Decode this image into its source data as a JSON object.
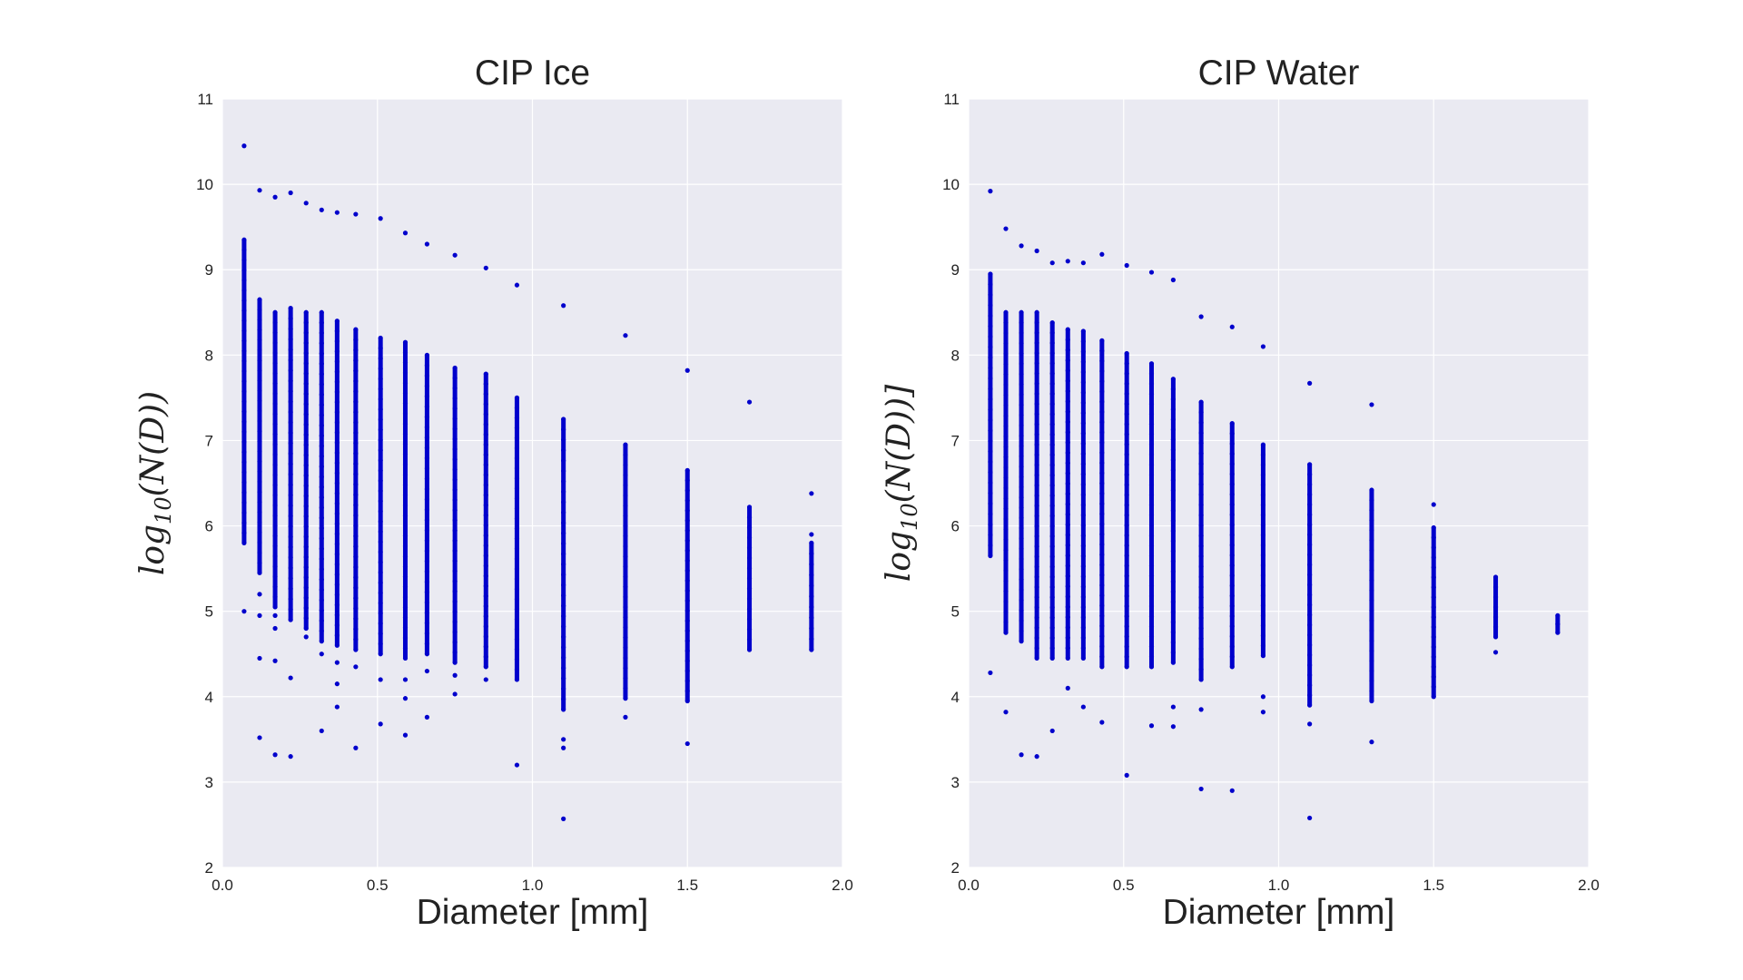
{
  "chart_data": [
    {
      "type": "scatter",
      "title": "CIP Ice",
      "xlabel": "Diameter [mm]",
      "ylabel": {
        "base": "log",
        "sub": "10",
        "rest": "(N(D))"
      },
      "xlim": [
        0.0,
        2.0
      ],
      "ylim": [
        2,
        11
      ],
      "xticks": [
        "0.0",
        "0.5",
        "1.0",
        "1.5",
        "2.0"
      ],
      "yticks": [
        "2",
        "3",
        "4",
        "5",
        "6",
        "7",
        "8",
        "9",
        "10",
        "11"
      ],
      "grid": true,
      "point_color": "#0000cc",
      "background": "#eaeaf2",
      "columns": [
        {
          "x": 0.07,
          "ymin": 5.8,
          "ymax": 9.35,
          "outliers": [
            10.45,
            5.0
          ]
        },
        {
          "x": 0.12,
          "ymin": 5.45,
          "ymax": 8.65,
          "outliers": [
            9.93,
            5.2,
            4.95,
            4.45,
            3.52
          ]
        },
        {
          "x": 0.17,
          "ymin": 5.05,
          "ymax": 8.5,
          "outliers": [
            9.85,
            4.95,
            4.8,
            4.42,
            3.32
          ]
        },
        {
          "x": 0.22,
          "ymin": 4.9,
          "ymax": 8.55,
          "outliers": [
            9.9,
            4.22,
            3.3
          ]
        },
        {
          "x": 0.27,
          "ymin": 4.8,
          "ymax": 8.5,
          "outliers": [
            9.78,
            4.7
          ]
        },
        {
          "x": 0.32,
          "ymin": 4.65,
          "ymax": 8.5,
          "outliers": [
            9.7,
            4.5,
            3.6
          ]
        },
        {
          "x": 0.37,
          "ymin": 4.6,
          "ymax": 8.4,
          "outliers": [
            9.67,
            4.4,
            4.15,
            3.88
          ]
        },
        {
          "x": 0.43,
          "ymin": 4.55,
          "ymax": 8.3,
          "outliers": [
            9.65,
            4.35,
            3.4
          ]
        },
        {
          "x": 0.51,
          "ymin": 4.5,
          "ymax": 8.2,
          "outliers": [
            9.6,
            4.2,
            3.68
          ]
        },
        {
          "x": 0.59,
          "ymin": 4.45,
          "ymax": 8.15,
          "outliers": [
            9.43,
            4.2,
            3.98,
            3.55
          ]
        },
        {
          "x": 0.66,
          "ymin": 4.5,
          "ymax": 8.0,
          "outliers": [
            9.3,
            4.3,
            3.76
          ]
        },
        {
          "x": 0.75,
          "ymin": 4.4,
          "ymax": 7.85,
          "outliers": [
            9.17,
            4.25,
            4.03
          ]
        },
        {
          "x": 0.85,
          "ymin": 4.35,
          "ymax": 7.78,
          "outliers": [
            9.02,
            4.2
          ]
        },
        {
          "x": 0.95,
          "ymin": 4.2,
          "ymax": 7.5,
          "outliers": [
            8.82,
            3.2
          ]
        },
        {
          "x": 1.1,
          "ymin": 3.85,
          "ymax": 7.25,
          "outliers": [
            8.58,
            3.5,
            3.4,
            2.57
          ]
        },
        {
          "x": 1.3,
          "ymin": 3.98,
          "ymax": 6.95,
          "outliers": [
            8.23,
            3.76
          ]
        },
        {
          "x": 1.5,
          "ymin": 3.95,
          "ymax": 6.65,
          "outliers": [
            7.82,
            3.45
          ]
        },
        {
          "x": 1.7,
          "ymin": 4.55,
          "ymax": 6.22,
          "outliers": [
            7.45
          ]
        },
        {
          "x": 1.9,
          "ymin": 4.55,
          "ymax": 5.8,
          "outliers": [
            6.38,
            5.9
          ]
        }
      ]
    },
    {
      "type": "scatter",
      "title": "CIP Water",
      "xlabel": "Diameter [mm]",
      "ylabel": {
        "base": "log",
        "sub": "10",
        "rest": "(N(D))]"
      },
      "xlim": [
        0.0,
        2.0
      ],
      "ylim": [
        2,
        11
      ],
      "xticks": [
        "0.0",
        "0.5",
        "1.0",
        "1.5",
        "2.0"
      ],
      "yticks": [
        "2",
        "3",
        "4",
        "5",
        "6",
        "7",
        "8",
        "9",
        "10",
        "11"
      ],
      "grid": true,
      "point_color": "#0000cc",
      "background": "#eaeaf2",
      "columns": [
        {
          "x": 0.07,
          "ymin": 5.65,
          "ymax": 8.95,
          "outliers": [
            9.92,
            4.28
          ]
        },
        {
          "x": 0.12,
          "ymin": 4.75,
          "ymax": 8.5,
          "outliers": [
            9.48,
            3.82
          ]
        },
        {
          "x": 0.17,
          "ymin": 4.65,
          "ymax": 8.5,
          "outliers": [
            9.28,
            3.32
          ]
        },
        {
          "x": 0.22,
          "ymin": 4.45,
          "ymax": 8.5,
          "outliers": [
            9.22,
            3.3
          ]
        },
        {
          "x": 0.27,
          "ymin": 4.45,
          "ymax": 8.38,
          "outliers": [
            9.08,
            3.6
          ]
        },
        {
          "x": 0.32,
          "ymin": 4.45,
          "ymax": 8.3,
          "outliers": [
            9.1,
            4.1
          ]
        },
        {
          "x": 0.37,
          "ymin": 4.45,
          "ymax": 8.28,
          "outliers": [
            9.08,
            3.88
          ]
        },
        {
          "x": 0.43,
          "ymin": 4.35,
          "ymax": 8.17,
          "outliers": [
            9.18,
            3.7
          ]
        },
        {
          "x": 0.51,
          "ymin": 4.35,
          "ymax": 8.02,
          "outliers": [
            9.05,
            3.08
          ]
        },
        {
          "x": 0.59,
          "ymin": 4.35,
          "ymax": 7.9,
          "outliers": [
            8.97,
            3.66
          ]
        },
        {
          "x": 0.66,
          "ymin": 4.4,
          "ymax": 7.72,
          "outliers": [
            8.88,
            3.88,
            3.65
          ]
        },
        {
          "x": 0.75,
          "ymin": 4.2,
          "ymax": 7.45,
          "outliers": [
            8.45,
            3.85,
            2.92
          ]
        },
        {
          "x": 0.85,
          "ymin": 4.35,
          "ymax": 7.2,
          "outliers": [
            8.33,
            2.9
          ]
        },
        {
          "x": 0.95,
          "ymin": 4.48,
          "ymax": 6.95,
          "outliers": [
            8.1,
            4.0,
            3.82
          ]
        },
        {
          "x": 1.1,
          "ymin": 3.9,
          "ymax": 6.72,
          "outliers": [
            7.67,
            3.68,
            2.58
          ]
        },
        {
          "x": 1.3,
          "ymin": 3.95,
          "ymax": 6.42,
          "outliers": [
            7.42,
            3.47
          ]
        },
        {
          "x": 1.5,
          "ymin": 4.0,
          "ymax": 5.98,
          "outliers": [
            6.25
          ]
        },
        {
          "x": 1.7,
          "ymin": 4.7,
          "ymax": 5.4,
          "outliers": [
            4.52
          ]
        },
        {
          "x": 1.9,
          "ymin": 4.75,
          "ymax": 4.95,
          "outliers": []
        }
      ]
    }
  ]
}
